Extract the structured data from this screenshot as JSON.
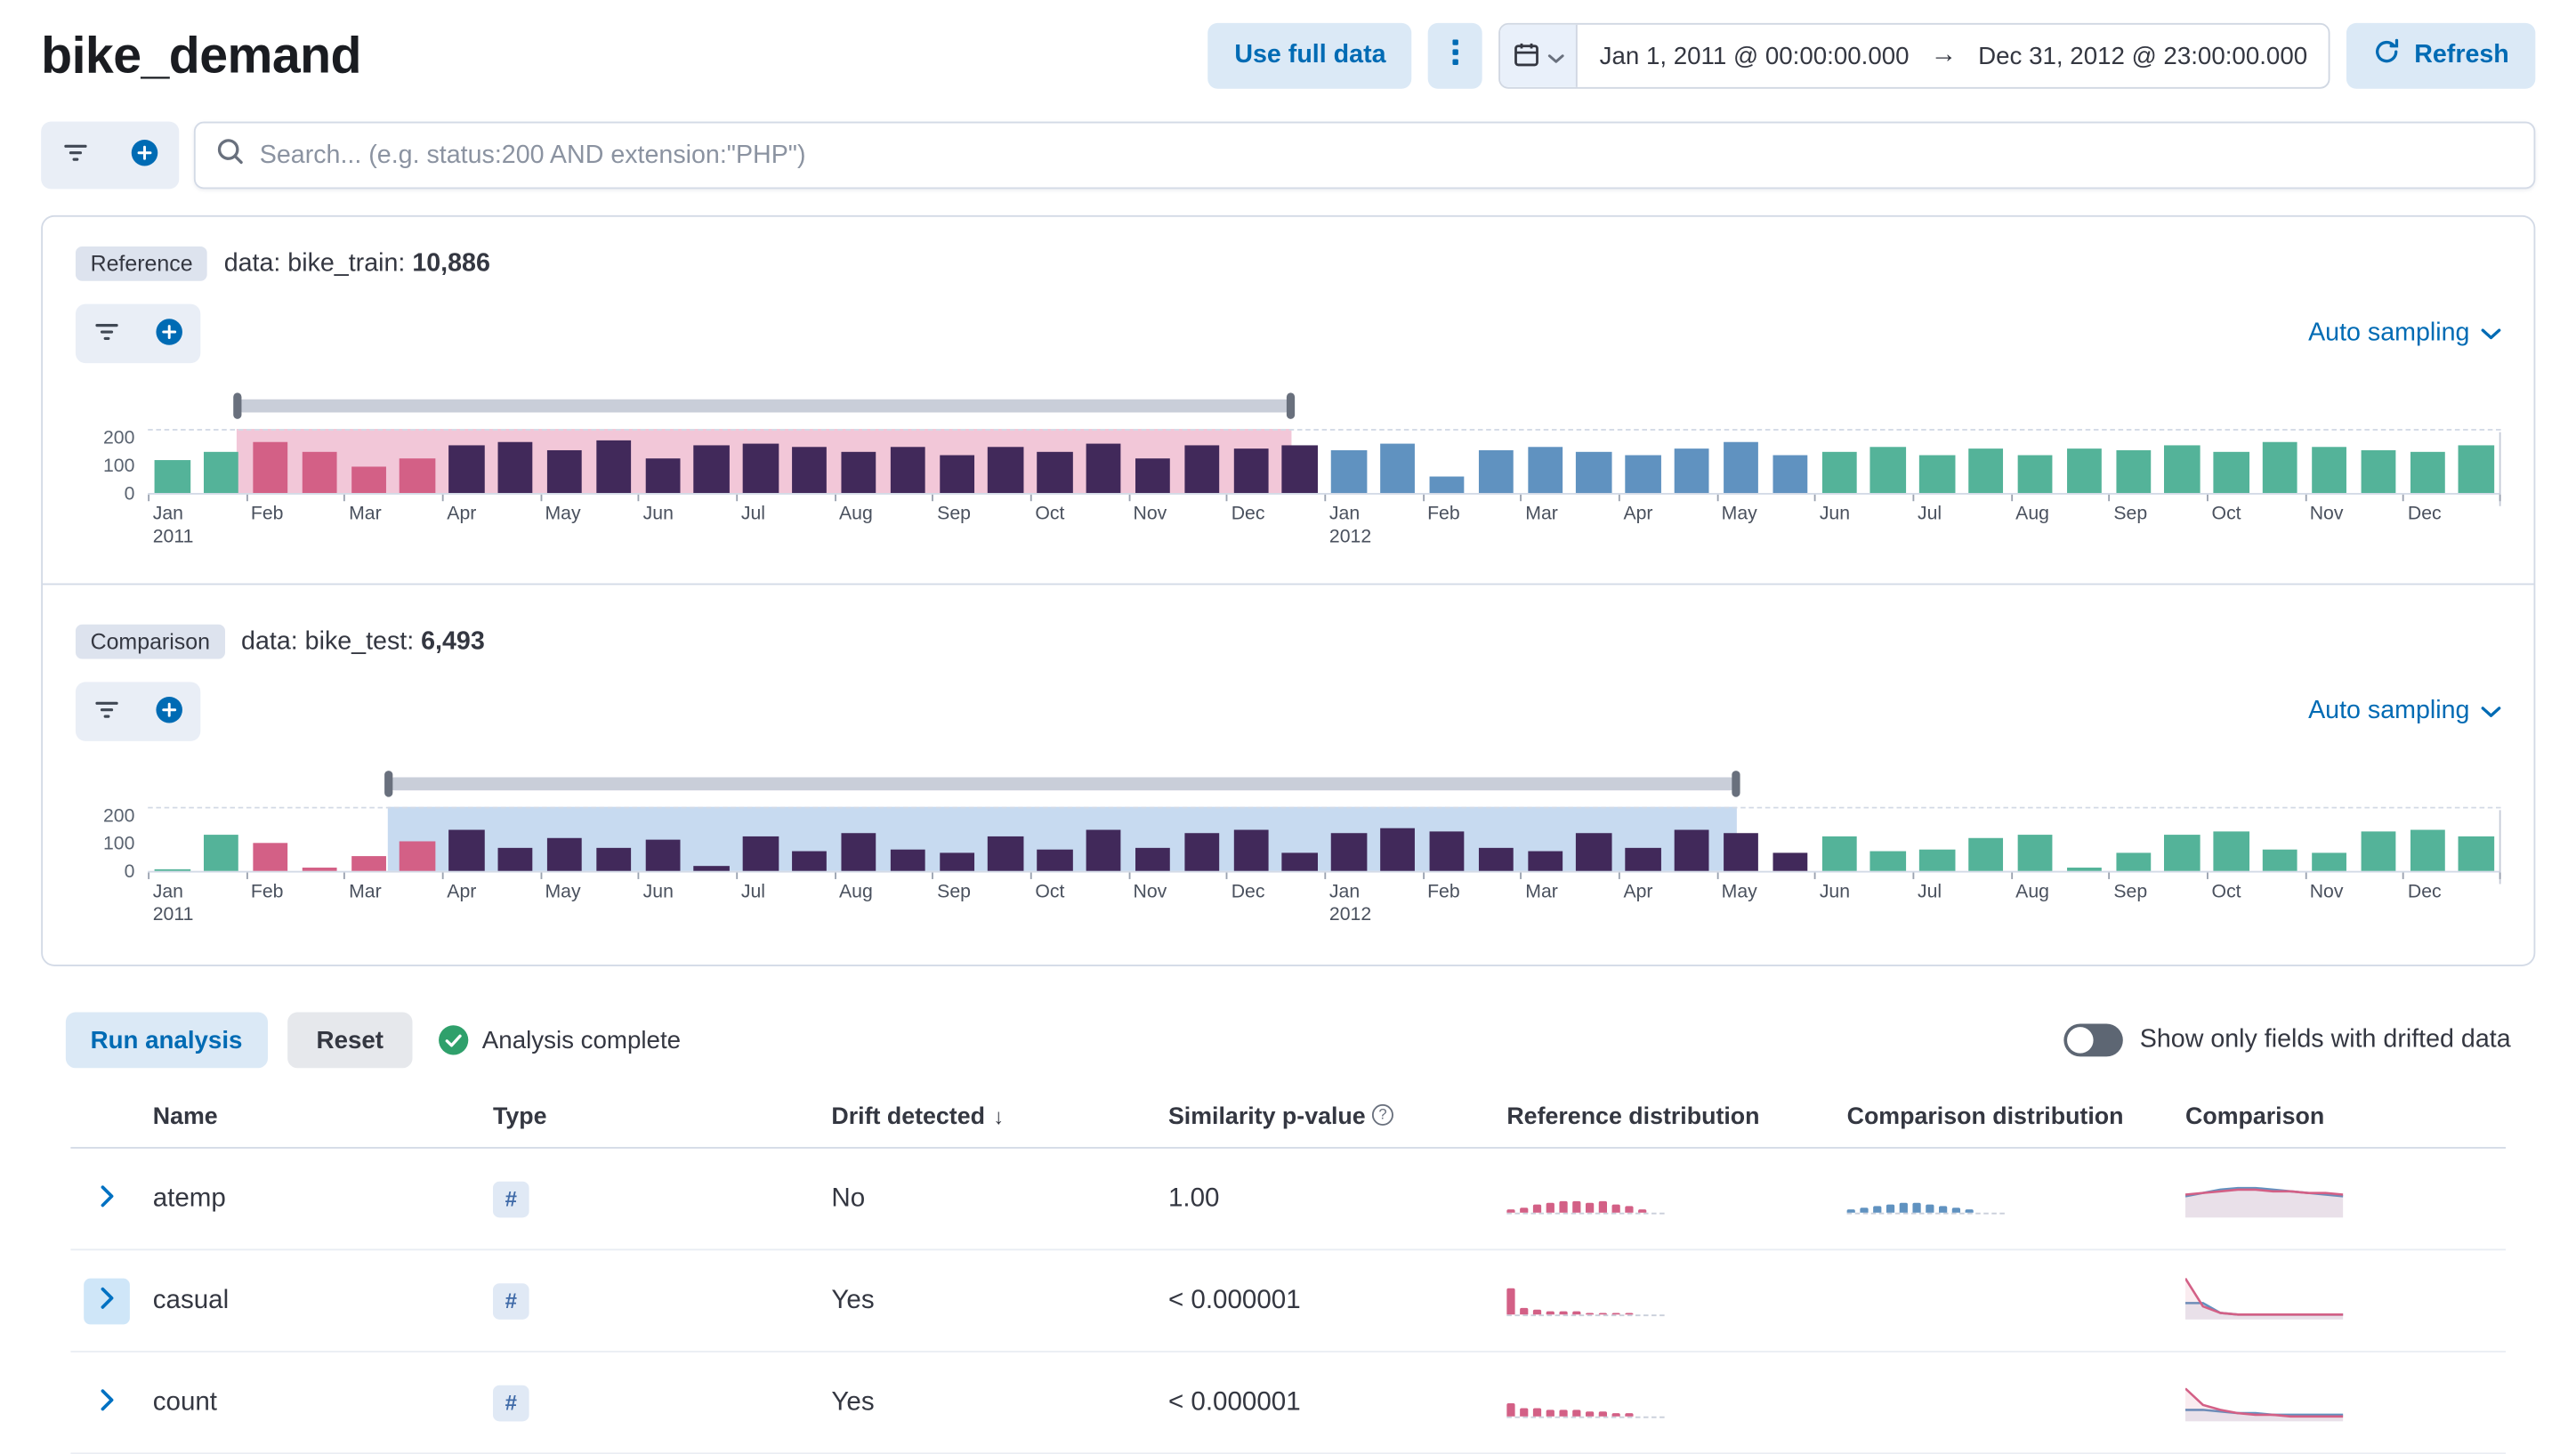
{
  "header": {
    "title": "bike_demand",
    "use_full_data": "Use full data",
    "date_start": "Jan 1, 2011 @ 00:00:00.000",
    "date_arrow": "→",
    "date_end": "Dec 31, 2012 @ 23:00:00.000",
    "refresh": "Refresh"
  },
  "search": {
    "placeholder": "Search... (e.g. status:200 AND extension:\"PHP\")"
  },
  "palette": {
    "g": "#54B399",
    "p": "#D36086",
    "d": "#41295A",
    "b": "#6092C0",
    "ref_bg": "#F2C7D8",
    "comp_bg": "#C7DAF0",
    "accent": "#006BB4",
    "success": "#2FA06B"
  },
  "timeline": {
    "months": [
      {
        "m": "Jan",
        "y": "2011"
      },
      {
        "m": "Feb"
      },
      {
        "m": "Mar"
      },
      {
        "m": "Apr"
      },
      {
        "m": "May"
      },
      {
        "m": "Jun"
      },
      {
        "m": "Jul"
      },
      {
        "m": "Aug"
      },
      {
        "m": "Sep"
      },
      {
        "m": "Oct"
      },
      {
        "m": "Nov"
      },
      {
        "m": "Dec"
      },
      {
        "m": "Jan",
        "y": "2012"
      },
      {
        "m": "Feb"
      },
      {
        "m": "Mar"
      },
      {
        "m": "Apr"
      },
      {
        "m": "May"
      },
      {
        "m": "Jun"
      },
      {
        "m": "Jul"
      },
      {
        "m": "Aug"
      },
      {
        "m": "Sep"
      },
      {
        "m": "Oct"
      },
      {
        "m": "Nov"
      },
      {
        "m": "Dec"
      }
    ]
  },
  "reference": {
    "badge": "Reference",
    "data_label": "data: bike_train:",
    "count": "10,886",
    "sampling": "Auto sampling",
    "chart": {
      "type": "bar",
      "ymax": 235,
      "yticks": [
        200,
        100,
        0
      ],
      "sel_start": 0.038,
      "sel_end": 0.486,
      "sel_color": "ref_bg",
      "bars": [
        [
          115,
          "g"
        ],
        [
          150,
          "g"
        ],
        [
          185,
          "p"
        ],
        [
          150,
          "p"
        ],
        [
          95,
          "p"
        ],
        [
          125,
          "p"
        ],
        [
          170,
          "d"
        ],
        [
          180,
          "d"
        ],
        [
          155,
          "d"
        ],
        [
          190,
          "d"
        ],
        [
          125,
          "d"
        ],
        [
          170,
          "d"
        ],
        [
          175,
          "d"
        ],
        [
          165,
          "d"
        ],
        [
          150,
          "d"
        ],
        [
          165,
          "d"
        ],
        [
          135,
          "d"
        ],
        [
          165,
          "d"
        ],
        [
          145,
          "d"
        ],
        [
          175,
          "d"
        ],
        [
          125,
          "d"
        ],
        [
          170,
          "d"
        ],
        [
          160,
          "d"
        ],
        [
          170,
          "d"
        ],
        [
          155,
          "b"
        ],
        [
          175,
          "b"
        ],
        [
          60,
          "b"
        ],
        [
          155,
          "b"
        ],
        [
          165,
          "b"
        ],
        [
          145,
          "b"
        ],
        [
          135,
          "b"
        ],
        [
          160,
          "b"
        ],
        [
          180,
          "b"
        ],
        [
          135,
          "b"
        ],
        [
          145,
          "g"
        ],
        [
          165,
          "g"
        ],
        [
          135,
          "g"
        ],
        [
          160,
          "g"
        ],
        [
          135,
          "g"
        ],
        [
          160,
          "g"
        ],
        [
          155,
          "g"
        ],
        [
          170,
          "g"
        ],
        [
          145,
          "g"
        ],
        [
          180,
          "g"
        ],
        [
          165,
          "g"
        ],
        [
          155,
          "g"
        ],
        [
          145,
          "g"
        ],
        [
          170,
          "g"
        ]
      ]
    }
  },
  "comparison": {
    "badge": "Comparison",
    "data_label": "data: bike_test:",
    "count": "6,493",
    "sampling": "Auto sampling",
    "chart": {
      "type": "bar",
      "ymax": 235,
      "yticks": [
        200,
        100,
        0
      ],
      "sel_start": 0.102,
      "sel_end": 0.675,
      "sel_color": "comp_bg",
      "bars": [
        [
          5,
          "g"
        ],
        [
          130,
          "g"
        ],
        [
          100,
          "p"
        ],
        [
          10,
          "p"
        ],
        [
          55,
          "p"
        ],
        [
          105,
          "p"
        ],
        [
          150,
          "d"
        ],
        [
          85,
          "d"
        ],
        [
          120,
          "d"
        ],
        [
          80,
          "d"
        ],
        [
          110,
          "d"
        ],
        [
          15,
          "d"
        ],
        [
          125,
          "d"
        ],
        [
          70,
          "d"
        ],
        [
          135,
          "d"
        ],
        [
          75,
          "d"
        ],
        [
          65,
          "d"
        ],
        [
          125,
          "d"
        ],
        [
          75,
          "d"
        ],
        [
          145,
          "d"
        ],
        [
          80,
          "d"
        ],
        [
          135,
          "d"
        ],
        [
          150,
          "d"
        ],
        [
          65,
          "d"
        ],
        [
          135,
          "d"
        ],
        [
          155,
          "d"
        ],
        [
          140,
          "d"
        ],
        [
          85,
          "d"
        ],
        [
          70,
          "d"
        ],
        [
          135,
          "d"
        ],
        [
          80,
          "d"
        ],
        [
          150,
          "d"
        ],
        [
          135,
          "d"
        ],
        [
          65,
          "d"
        ],
        [
          125,
          "g"
        ],
        [
          70,
          "g"
        ],
        [
          75,
          "g"
        ],
        [
          120,
          "g"
        ],
        [
          130,
          "g"
        ],
        [
          10,
          "g"
        ],
        [
          65,
          "g"
        ],
        [
          130,
          "g"
        ],
        [
          140,
          "g"
        ],
        [
          75,
          "g"
        ],
        [
          65,
          "g"
        ],
        [
          140,
          "g"
        ],
        [
          145,
          "g"
        ],
        [
          125,
          "g"
        ]
      ]
    }
  },
  "analysis": {
    "run": "Run analysis",
    "reset": "Reset",
    "status": "Analysis complete",
    "toggle_label": "Show only fields with drifted data",
    "toggle_on": false
  },
  "table": {
    "icons": {
      "sort_desc": "↓",
      "info": "?"
    },
    "columns": [
      {
        "label": "Name"
      },
      {
        "label": "Type"
      },
      {
        "label": "Drift detected",
        "sorted": "desc"
      },
      {
        "label": "Similarity p-value",
        "info": true
      },
      {
        "label": "Reference distribution"
      },
      {
        "label": "Comparison distribution"
      },
      {
        "label": "Comparison"
      }
    ],
    "rows": [
      {
        "name": "atemp",
        "type": "#",
        "drift": "No",
        "p_value": "1.00",
        "expanded": false,
        "ref_dist": [
          2,
          3,
          5,
          6,
          7,
          7,
          6,
          7,
          5,
          4,
          2
        ],
        "comp_dist": [
          1.5,
          3,
          4,
          5,
          6,
          6,
          5,
          4,
          3,
          2
        ],
        "overlay": {
          "pink": [
            14,
            13,
            12,
            11,
            11,
            12,
            12,
            13,
            13,
            14
          ],
          "blue": [
            15,
            13,
            11,
            10,
            10,
            11,
            12,
            13,
            14,
            15
          ]
        }
      },
      {
        "name": "casual",
        "type": "#",
        "drift": "Yes",
        "p_value": "< 0.000001",
        "expanded": true,
        "ref_dist": [
          16,
          4,
          2.5,
          2,
          1.5,
          1.2,
          1,
          0.8,
          0.8,
          0.6
        ],
        "comp_dist": [],
        "overlay": {
          "pink": [
            3,
            20,
            24,
            25,
            25,
            25,
            25,
            25,
            25,
            25
          ],
          "blue": [
            18,
            18,
            24,
            25,
            25,
            25,
            25,
            25,
            25,
            25
          ]
        }
      },
      {
        "name": "count",
        "type": "#",
        "drift": "Yes",
        "p_value": "< 0.000001",
        "expanded": false,
        "ref_dist": [
          8,
          5,
          5,
          4,
          4,
          4,
          3,
          3,
          2,
          2
        ],
        "comp_dist": [],
        "overlay": {
          "pink": [
            8,
            18,
            21,
            23,
            24,
            24,
            25,
            25,
            25,
            25
          ],
          "blue": [
            21,
            21,
            22,
            23,
            23,
            24,
            24,
            24,
            24,
            24
          ]
        }
      }
    ]
  }
}
